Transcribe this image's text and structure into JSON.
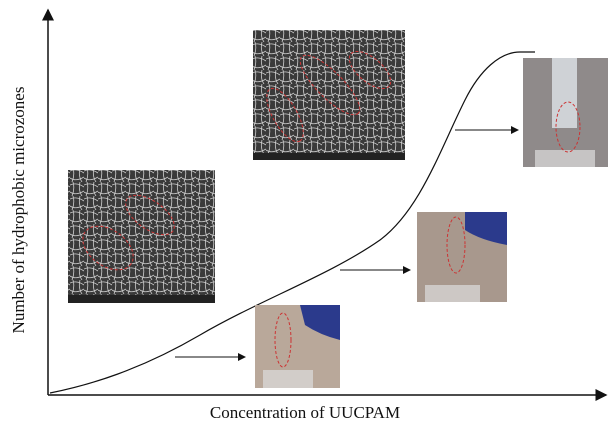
{
  "axes": {
    "x_label": "Concentration of UUCPAM",
    "y_label": "Number of hydrophobic microzones"
  }
}
